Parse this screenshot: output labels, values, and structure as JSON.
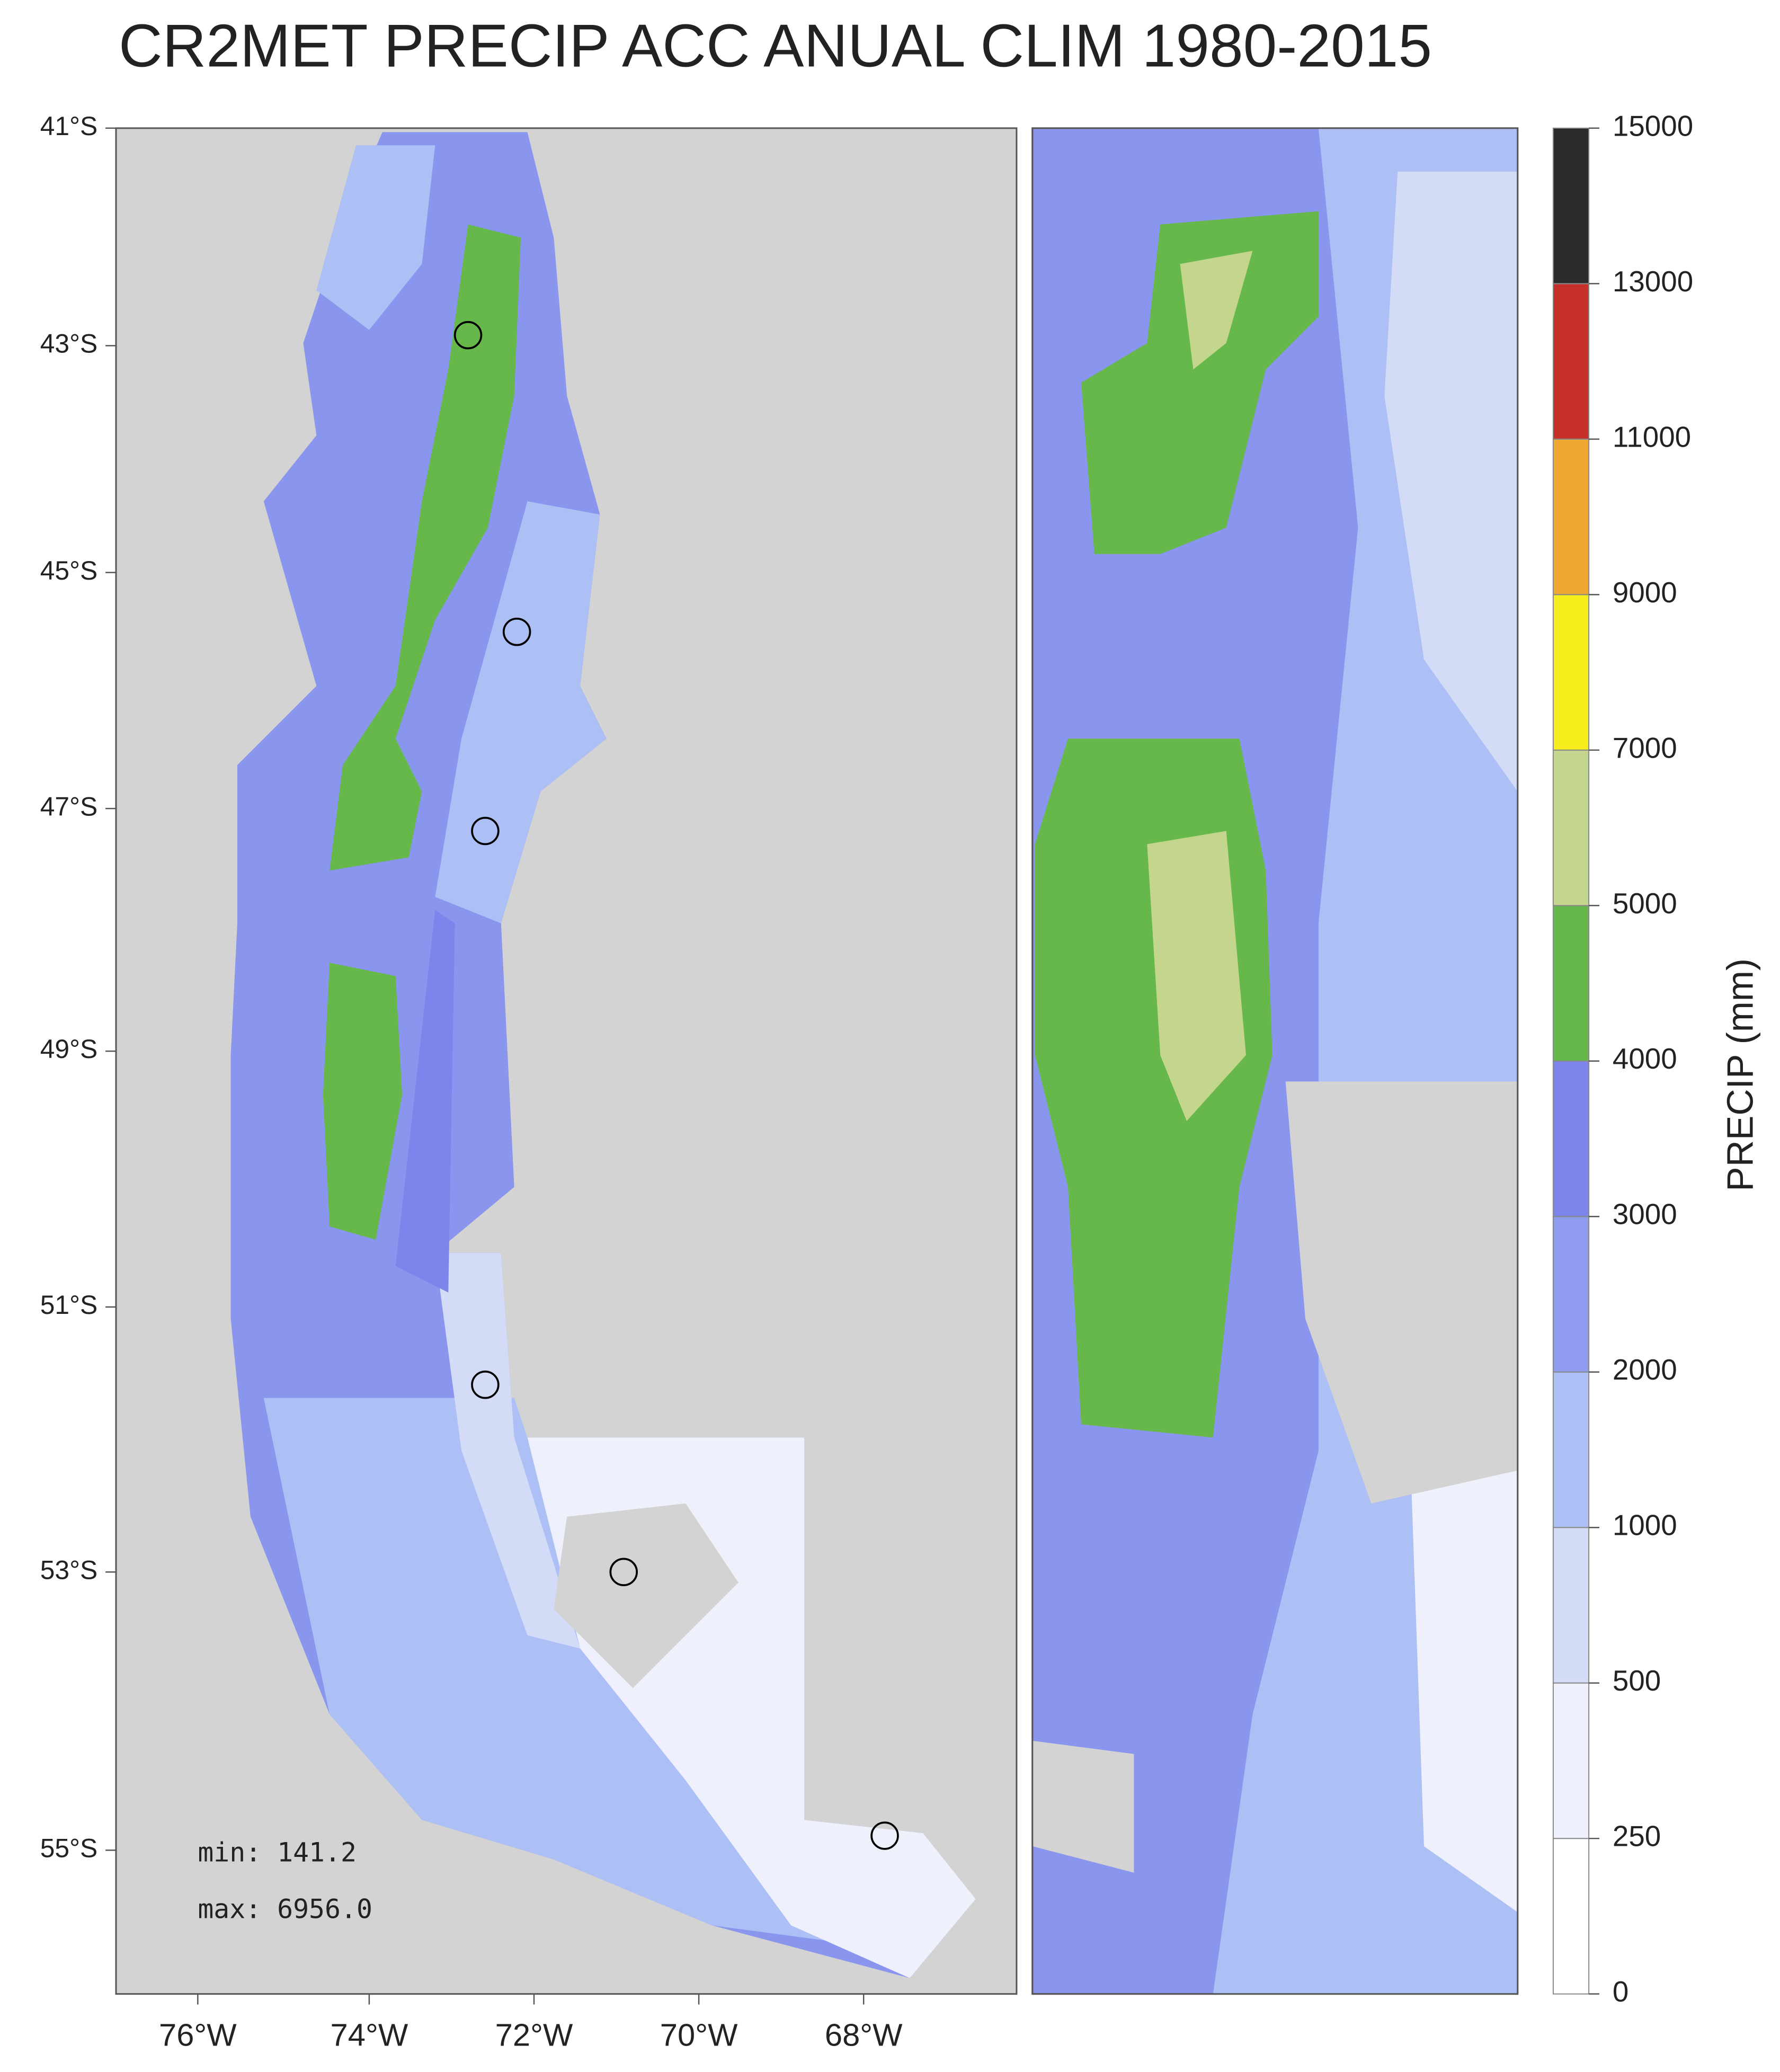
{
  "header": {
    "title": "CR2MET PRECIP ACC ANUAL CLIM 1980-2015"
  },
  "map": {
    "lat_labels": [
      "41°S",
      "43°S",
      "45°S",
      "47°S",
      "49°S",
      "51°S",
      "53°S",
      "55°S"
    ],
    "lon_labels": [
      "76°W",
      "74°W",
      "72°W",
      "70°W",
      "68°W"
    ],
    "stats": [
      "min: 141.2",
      "max: 6956.0"
    ]
  },
  "colorbar": {
    "label": "PRECIP (mm)",
    "ticks": [
      0,
      250,
      500,
      1000,
      2000,
      3000,
      4000,
      5000,
      7000,
      9000,
      11000,
      13000,
      15000
    ],
    "colors": [
      "#ffffff",
      "#eef1fb",
      "#d3dbf6",
      "#adc0f5",
      "#8f9cef",
      "#7d84ec",
      "#66b84a",
      "#c4d68d",
      "#f5ee1c",
      "#f0a830",
      "#c8302a",
      "#2b2b2b"
    ]
  }
}
